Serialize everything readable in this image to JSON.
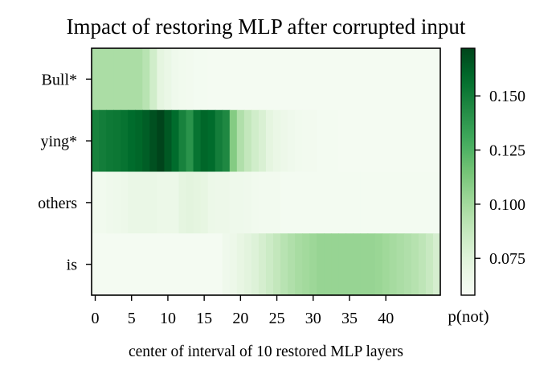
{
  "chart_data": {
    "type": "heatmap",
    "title": "Impact of restoring MLP after corrupted input",
    "xlabel": "center of interval of 10 restored MLP layers",
    "ylabel": "",
    "rows": [
      "Bull*",
      "ying*",
      "others",
      "is"
    ],
    "x_ticks": [
      0,
      5,
      10,
      15,
      20,
      25,
      30,
      35,
      40
    ],
    "x_range": [
      0,
      47
    ],
    "colorbar": {
      "label": "p(not)",
      "ticks": [
        0.075,
        0.1,
        0.125,
        0.15
      ],
      "tick_labels": [
        "0.075",
        "0.100",
        "0.125",
        "0.150"
      ],
      "range": [
        0.058,
        0.172
      ]
    },
    "colormap": "Greens",
    "values": [
      [
        0.097,
        0.097,
        0.097,
        0.097,
        0.097,
        0.097,
        0.097,
        0.092,
        0.082,
        0.072,
        0.068,
        0.064,
        0.063,
        0.062,
        0.061,
        0.061,
        0.06,
        0.06,
        0.06,
        0.06,
        0.06,
        0.06,
        0.06,
        0.06,
        0.06,
        0.06,
        0.06,
        0.06,
        0.06,
        0.06,
        0.06,
        0.06,
        0.06,
        0.06,
        0.06,
        0.06,
        0.06,
        0.06,
        0.06,
        0.06,
        0.06,
        0.06,
        0.06,
        0.06,
        0.06,
        0.06,
        0.06,
        0.06
      ],
      [
        0.148,
        0.15,
        0.152,
        0.153,
        0.155,
        0.158,
        0.16,
        0.163,
        0.168,
        0.172,
        0.165,
        0.158,
        0.148,
        0.14,
        0.155,
        0.16,
        0.158,
        0.15,
        0.145,
        0.11,
        0.095,
        0.088,
        0.082,
        0.078,
        0.072,
        0.068,
        0.066,
        0.064,
        0.063,
        0.062,
        0.062,
        0.061,
        0.061,
        0.061,
        0.06,
        0.06,
        0.06,
        0.06,
        0.06,
        0.06,
        0.06,
        0.06,
        0.06,
        0.06,
        0.06,
        0.06,
        0.06,
        0.06
      ],
      [
        0.063,
        0.063,
        0.064,
        0.065,
        0.066,
        0.068,
        0.068,
        0.068,
        0.068,
        0.067,
        0.067,
        0.067,
        0.072,
        0.073,
        0.072,
        0.071,
        0.067,
        0.066,
        0.066,
        0.065,
        0.065,
        0.064,
        0.063,
        0.062,
        0.062,
        0.062,
        0.061,
        0.061,
        0.061,
        0.061,
        0.061,
        0.061,
        0.061,
        0.061,
        0.061,
        0.061,
        0.061,
        0.061,
        0.061,
        0.061,
        0.061,
        0.061,
        0.061,
        0.061,
        0.061,
        0.061,
        0.061,
        0.061
      ],
      [
        0.06,
        0.06,
        0.06,
        0.06,
        0.06,
        0.06,
        0.06,
        0.06,
        0.06,
        0.06,
        0.06,
        0.06,
        0.06,
        0.06,
        0.06,
        0.06,
        0.06,
        0.06,
        0.064,
        0.066,
        0.07,
        0.073,
        0.076,
        0.08,
        0.084,
        0.088,
        0.092,
        0.095,
        0.098,
        0.1,
        0.102,
        0.104,
        0.104,
        0.104,
        0.104,
        0.104,
        0.104,
        0.104,
        0.104,
        0.103,
        0.101,
        0.099,
        0.097,
        0.095,
        0.093,
        0.09,
        0.086,
        0.08
      ]
    ]
  }
}
